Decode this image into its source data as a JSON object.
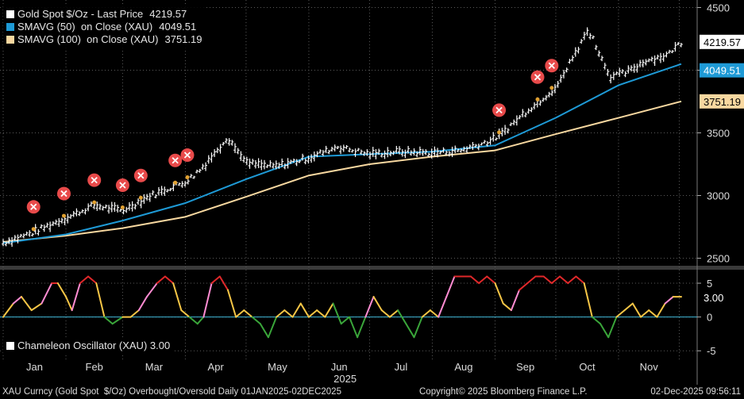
{
  "legend": {
    "items": [
      {
        "label": "Gold Spot $/Oz - Last Price",
        "value": "4219.57",
        "color": "#ffffff"
      },
      {
        "label": "SMAVG (50)  on Close (XAU)",
        "value": "4049.51",
        "color": "#1e9ad6"
      },
      {
        "label": "SMAVG (100)  on Close (XAU)",
        "value": "3751.19",
        "color": "#f8d8a0"
      }
    ]
  },
  "osc_legend": {
    "label": "Chameleon Oscillator (XAU) 3.00",
    "color": "#ffffff"
  },
  "footer": {
    "left": "XAU Curncy (Gold Spot  $/Oz) Overbought/Oversold Daily 01JAN2025-02DEC2025",
    "center": "Copyright© 2025 Bloomberg Finance L.P.",
    "right": "02-Dec-2025 09:56:11"
  },
  "chart_data": [
    {
      "type": "line",
      "y_axis_ticks": [
        2500,
        3000,
        3500,
        4000,
        4500
      ],
      "ylim": [
        2440,
        4560
      ],
      "x_tick_labels": [
        "Jan",
        "Feb",
        "Mar",
        "Apr",
        "May",
        "Jun",
        "Jul",
        "Aug",
        "Sep",
        "Oct",
        "Nov"
      ],
      "x_year_label": "2025",
      "last_values": {
        "price": "4219.57",
        "sma50": "4049.51",
        "sma100": "3751.19"
      },
      "series": [
        {
          "name": "Gold Spot $/Oz - Last Price",
          "color": "#ffffff",
          "x": [
            "01-01",
            "01-15",
            "02-01",
            "02-15",
            "03-01",
            "03-15",
            "04-01",
            "04-03",
            "04-10",
            "04-22",
            "05-01",
            "05-15",
            "06-01",
            "06-15",
            "07-01",
            "07-15",
            "08-01",
            "08-15",
            "09-01",
            "09-15",
            "10-01",
            "10-08",
            "10-17",
            "10-28",
            "11-05",
            "11-15",
            "11-25",
            "12-02"
          ],
          "values": [
            2625,
            2700,
            2820,
            2920,
            2880,
            3000,
            3110,
            3130,
            3230,
            3470,
            3260,
            3230,
            3300,
            3390,
            3330,
            3350,
            3340,
            3360,
            3450,
            3650,
            3860,
            4060,
            4320,
            3950,
            3980,
            4080,
            4120,
            4220
          ]
        },
        {
          "name": "SMAVG (50)  on Close (XAU)",
          "color": "#1e9ad6",
          "x": [
            "01-01",
            "02-01",
            "03-01",
            "04-01",
            "05-01",
            "06-01",
            "07-01",
            "08-01",
            "09-01",
            "10-01",
            "11-01",
            "12-02"
          ],
          "values": [
            2620,
            2690,
            2800,
            2940,
            3130,
            3310,
            3330,
            3350,
            3400,
            3620,
            3880,
            4049.51
          ]
        },
        {
          "name": "SMAVG (100)  on Close (XAU)",
          "color": "#f8d8a0",
          "x": [
            "01-01",
            "02-01",
            "03-01",
            "04-01",
            "05-01",
            "06-01",
            "07-01",
            "08-01",
            "09-01",
            "10-01",
            "11-01",
            "12-02"
          ],
          "values": [
            2630,
            2680,
            2740,
            2830,
            2990,
            3160,
            3250,
            3310,
            3360,
            3490,
            3620,
            3751.19
          ]
        }
      ],
      "signal_markers": [
        "01-16",
        "01-31",
        "02-15",
        "03-01",
        "03-10",
        "03-27",
        "04-02",
        "09-03",
        "09-22",
        "09-29"
      ]
    },
    {
      "type": "line",
      "name": "Chameleon Oscillator (XAU)",
      "y_axis_ticks": [
        -5,
        0,
        5
      ],
      "ylim": [
        -6.5,
        7
      ],
      "last_value": "3.00",
      "colors": {
        "overbought": "#e0282a",
        "above": "#ff8cd2",
        "neutral": "#f6c646",
        "below": "#3aa63a"
      },
      "x": [
        "01-01",
        "01-06",
        "01-10",
        "01-15",
        "01-20",
        "01-25",
        "01-28",
        "02-01",
        "02-04",
        "02-08",
        "02-12",
        "02-16",
        "02-20",
        "02-24",
        "03-01",
        "03-05",
        "03-09",
        "03-13",
        "03-18",
        "03-22",
        "03-26",
        "03-30",
        "04-03",
        "04-07",
        "04-10",
        "04-14",
        "04-18",
        "04-22",
        "04-26",
        "04-30",
        "05-04",
        "05-08",
        "05-12",
        "05-16",
        "05-20",
        "05-24",
        "05-28",
        "06-01",
        "06-05",
        "06-09",
        "06-13",
        "06-17",
        "06-21",
        "06-25",
        "06-29",
        "07-03",
        "07-07",
        "07-11",
        "07-15",
        "07-19",
        "07-23",
        "07-27",
        "07-31",
        "08-04",
        "08-08",
        "08-12",
        "08-16",
        "08-20",
        "08-24",
        "08-28",
        "09-01",
        "09-05",
        "09-09",
        "09-13",
        "09-17",
        "09-21",
        "09-25",
        "09-29",
        "10-03",
        "10-07",
        "10-11",
        "10-15",
        "10-19",
        "10-23",
        "10-27",
        "10-31",
        "11-04",
        "11-08",
        "11-12",
        "11-16",
        "11-20",
        "11-24",
        "11-28",
        "12-02"
      ],
      "values": [
        0,
        2,
        3,
        1,
        2,
        5,
        5,
        3,
        1,
        5,
        6,
        5,
        0,
        -1,
        0,
        0,
        1,
        3,
        5,
        6,
        5,
        1,
        0,
        -1,
        0,
        5,
        6,
        4,
        0,
        1,
        0,
        -1,
        -3,
        0,
        1,
        0,
        2,
        0,
        1,
        0,
        2,
        -1,
        0,
        -3,
        0,
        3,
        1,
        0,
        1,
        -1,
        -3,
        0,
        1,
        0,
        3,
        6,
        6,
        6,
        5,
        6,
        5,
        2,
        1,
        4,
        5,
        6,
        6,
        5,
        6,
        5,
        6,
        5,
        0,
        -1,
        -3,
        0,
        1,
        2,
        0,
        1,
        0,
        2,
        3,
        3
      ]
    }
  ]
}
